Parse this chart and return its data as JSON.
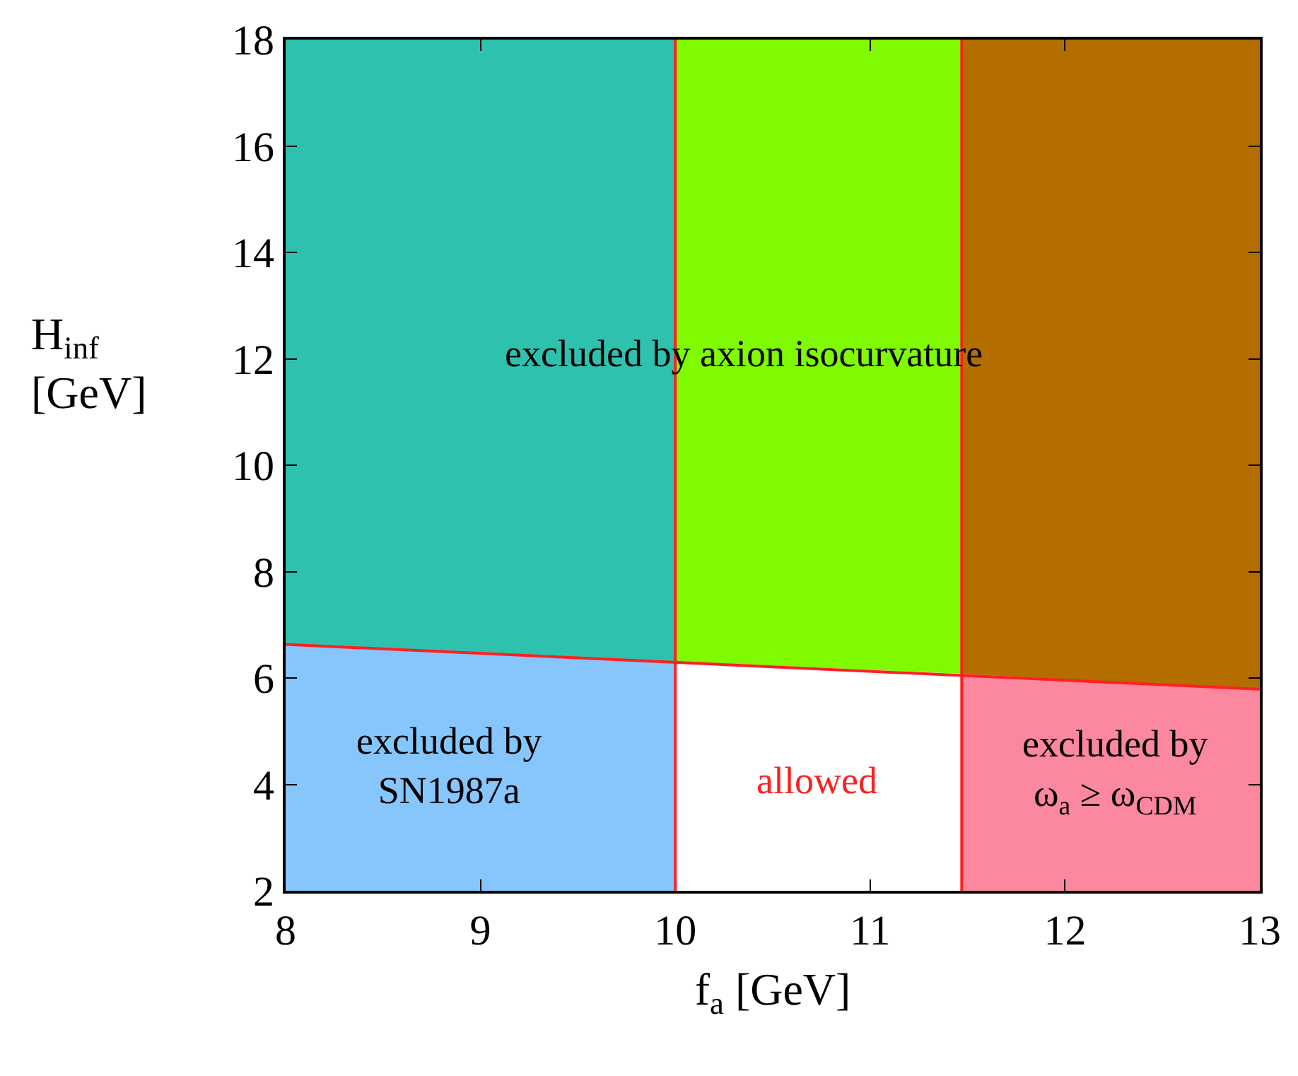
{
  "chart_data": {
    "type": "area",
    "xlabel": "f$_{a}$ [GeV]",
    "ylabel": "H$_{inf}$ [GeV]",
    "xlim": [
      8,
      13
    ],
    "xticks": [
      8,
      9,
      10,
      11,
      12,
      13
    ],
    "ylim": [
      2,
      18
    ],
    "yticks": [
      2,
      4,
      6,
      8,
      10,
      12,
      14,
      16,
      18
    ],
    "series": [
      {
        "color": "#2ec2ae",
        "x": [
          8,
          10
        ],
        "values": [
          18,
          18
        ]
      },
      {
        "color": "#7ffa00",
        "x": [
          10,
          11.47
        ],
        "values": [
          18,
          18
        ]
      },
      {
        "color": "#b46e00",
        "x": [
          11.47,
          13
        ],
        "values": [
          18,
          18
        ]
      },
      {
        "color": "#86c6fd",
        "x": [
          8,
          10
        ],
        "values": [
          6.63,
          6.31
        ]
      },
      {
        "color": "#ffffff",
        "x": [
          10,
          11.47
        ],
        "values": [
          6.31,
          6.08
        ]
      },
      {
        "color": "#fb889e",
        "x": [
          11.47,
          13
        ],
        "values": [
          6.08,
          5.79
        ]
      },
      {
        "type": "line",
        "color": "#ff2020",
        "x": [
          8,
          13
        ],
        "values": [
          6.63,
          5.79
        ]
      }
    ],
    "ref_lines": [
      {
        "axis": "x",
        "value": 10,
        "color": "#ff2020"
      },
      {
        "axis": "x",
        "value": 11.47,
        "color": "#ff2020"
      }
    ],
    "annotations": [
      "excluded by axion isocurvature",
      "excluded by\nSN1987a",
      "allowed",
      "excluded by\nω$_{a}$ ≥ ω$_{CDM}$"
    ]
  }
}
